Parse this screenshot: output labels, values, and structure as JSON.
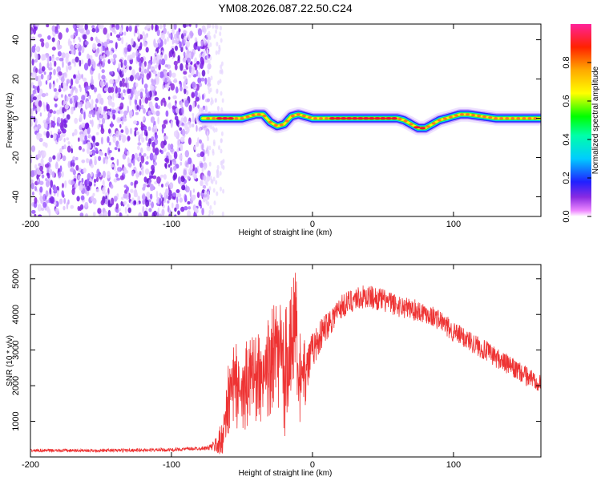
{
  "title": "YM08.2026.087.22.50.C24",
  "chart_data": [
    {
      "type": "heatmap",
      "name": "spectrogram",
      "xlabel": "Height of straight line (km)",
      "ylabel": "Frequency (Hz)",
      "xlim": [
        -200,
        162
      ],
      "ylim": [
        -50,
        48
      ],
      "xticks": [
        -200,
        -100,
        0,
        100
      ],
      "yticks": [
        -40,
        -20,
        0,
        20,
        40
      ],
      "colorbar": {
        "label": "Normalized spectral amplitude",
        "range": [
          0,
          1
        ],
        "ticks": [
          "0.0",
          "0.2",
          "0.4",
          "0.6",
          "0.8"
        ]
      },
      "noise_region_km": [
        -200,
        -73
      ],
      "ridge_centerline": {
        "x": [
          -78,
          -70,
          -60,
          -50,
          -40,
          -35,
          -30,
          -25,
          -20,
          -15,
          -10,
          0,
          10,
          20,
          40,
          60,
          65,
          70,
          75,
          80,
          85,
          90,
          95,
          100,
          105,
          110,
          120,
          130,
          140,
          150,
          162
        ],
        "y": [
          0,
          0,
          0,
          0,
          2,
          2,
          -2,
          -4,
          -3,
          1,
          2,
          0,
          0,
          0,
          0,
          0,
          -1,
          -3,
          -5,
          -5,
          -3,
          -1,
          0,
          1,
          2,
          2,
          1,
          0,
          0,
          0,
          0
        ]
      }
    },
    {
      "type": "line",
      "name": "snr",
      "xlabel": "Height of straight line (km)",
      "ylabel": "SNR (10 * v/v)",
      "xlim": [
        -200,
        162
      ],
      "ylim": [
        0,
        5400
      ],
      "xticks": [
        -200,
        -100,
        0,
        100
      ],
      "yticks": [
        1000,
        2000,
        3000,
        4000,
        5000
      ],
      "color": "#ee3333",
      "envelope": {
        "x": [
          -200,
          -150,
          -100,
          -75,
          -70,
          -65,
          -60,
          -55,
          -50,
          -45,
          -40,
          -35,
          -30,
          -25,
          -20,
          -15,
          -12,
          -10,
          -5,
          0,
          10,
          20,
          30,
          40,
          50,
          60,
          70,
          80,
          90,
          100,
          110,
          120,
          130,
          140,
          150,
          162
        ],
        "y": [
          180,
          180,
          200,
          250,
          300,
          400,
          1300,
          1800,
          1500,
          1900,
          2000,
          1800,
          2300,
          2500,
          1800,
          2600,
          3600,
          1900,
          2300,
          3000,
          3700,
          4200,
          4450,
          4500,
          4400,
          4250,
          4150,
          4050,
          3850,
          3500,
          3300,
          3050,
          2800,
          2550,
          2300,
          2100
        ]
      },
      "noise_amplitude": {
        "x": [
          -200,
          -75,
          -70,
          -60,
          -40,
          -20,
          -10,
          0,
          20,
          80,
          162
        ],
        "y": [
          40,
          50,
          150,
          900,
          1000,
          1500,
          1200,
          500,
          350,
          300,
          280
        ]
      }
    }
  ]
}
